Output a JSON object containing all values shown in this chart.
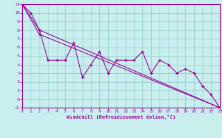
{
  "xlabel": "Windchill (Refroidissement éolien,°C)",
  "bg_color": "#c8eeee",
  "line_color": "#990099",
  "grid_color": "#99cccc",
  "zigzag_x": [
    0,
    1,
    2,
    3,
    4,
    5,
    6,
    7,
    8,
    9,
    10,
    11,
    12,
    13,
    14,
    15,
    16,
    17,
    18,
    19,
    20,
    21,
    22,
    23
  ],
  "zigzag_y": [
    11,
    10,
    8,
    4.5,
    4.5,
    4.5,
    6.5,
    2.5,
    4.0,
    5.5,
    3.0,
    4.5,
    4.5,
    4.5,
    5.5,
    3.0,
    4.5,
    4.0,
    3.0,
    3.5,
    3.0,
    1.5,
    0.5,
    -1.0
  ],
  "trend1_x": [
    0,
    2,
    23
  ],
  "trend1_y": [
    11,
    8.0,
    -1.0
  ],
  "trend2_x": [
    0,
    2,
    23
  ],
  "trend2_y": [
    11,
    7.5,
    -1.0
  ],
  "ymin": -1,
  "ymax": 11,
  "xmin": 0,
  "xmax": 23,
  "yticks": [
    -1,
    0,
    1,
    2,
    3,
    4,
    5,
    6,
    7,
    8,
    9,
    10,
    11
  ],
  "xticks": [
    0,
    1,
    2,
    3,
    4,
    5,
    6,
    7,
    8,
    9,
    10,
    11,
    12,
    13,
    14,
    15,
    16,
    17,
    18,
    19,
    20,
    21,
    22,
    23
  ]
}
